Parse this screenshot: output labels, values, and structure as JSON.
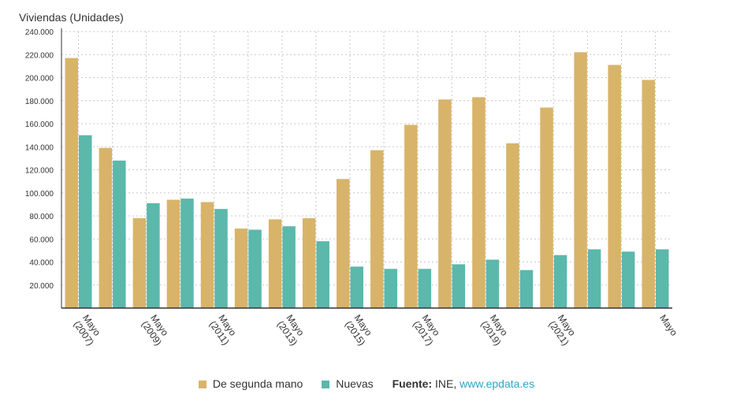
{
  "chart_data": {
    "type": "bar",
    "ylabel": "Viviendas (Unidades)",
    "ylim": [
      0,
      240000
    ],
    "yticks": [
      20000,
      40000,
      60000,
      80000,
      100000,
      120000,
      140000,
      160000,
      180000,
      200000,
      220000,
      240000
    ],
    "ytick_labels": [
      "20.000",
      "40.000",
      "60.000",
      "80.000",
      "100.000",
      "120.000",
      "140.000",
      "160.000",
      "180.000",
      "200.000",
      "220.000",
      "240.000"
    ],
    "categories": [
      "Mayo (2007)",
      "",
      "Mayo (2009)",
      "",
      "Mayo (2011)",
      "",
      "Mayo (2013)",
      "",
      "Mayo (2015)",
      "",
      "Mayo (2017)",
      "",
      "Mayo (2019)",
      "",
      "Mayo (2021)",
      "",
      "",
      "Mayo"
    ],
    "x_tick_labels": [
      {
        "index": 0,
        "lines": [
          "Mayo",
          "(2007)"
        ]
      },
      {
        "index": 2,
        "lines": [
          "Mayo",
          "(2009)"
        ]
      },
      {
        "index": 4,
        "lines": [
          "Mayo",
          "(2011)"
        ]
      },
      {
        "index": 6,
        "lines": [
          "Mayo",
          "(2013)"
        ]
      },
      {
        "index": 8,
        "lines": [
          "Mayo",
          "(2015)"
        ]
      },
      {
        "index": 10,
        "lines": [
          "Mayo",
          "(2017)"
        ]
      },
      {
        "index": 12,
        "lines": [
          "Mayo",
          "(2019)"
        ]
      },
      {
        "index": 14,
        "lines": [
          "Mayo",
          "(2021)"
        ]
      },
      {
        "index": 17,
        "lines": [
          "Mayo"
        ]
      }
    ],
    "series": [
      {
        "name": "De segunda mano",
        "color": "#d8b46a",
        "values": [
          217000,
          139000,
          78000,
          94000,
          92000,
          69000,
          77000,
          78000,
          112000,
          137000,
          159000,
          181000,
          183000,
          143000,
          174000,
          222000,
          211000,
          198000
        ]
      },
      {
        "name": "Nuevas",
        "color": "#5bb8ab",
        "values": [
          150000,
          128000,
          91000,
          95000,
          86000,
          68000,
          71000,
          58000,
          36000,
          34000,
          34000,
          38000,
          42000,
          33000,
          46000,
          51000,
          49000,
          51000
        ]
      }
    ],
    "grid": true,
    "legend_position": "bottom"
  },
  "legend": {
    "source_label": "Fuente:",
    "source_text": "INE,",
    "source_link": "www.epdata.es"
  }
}
